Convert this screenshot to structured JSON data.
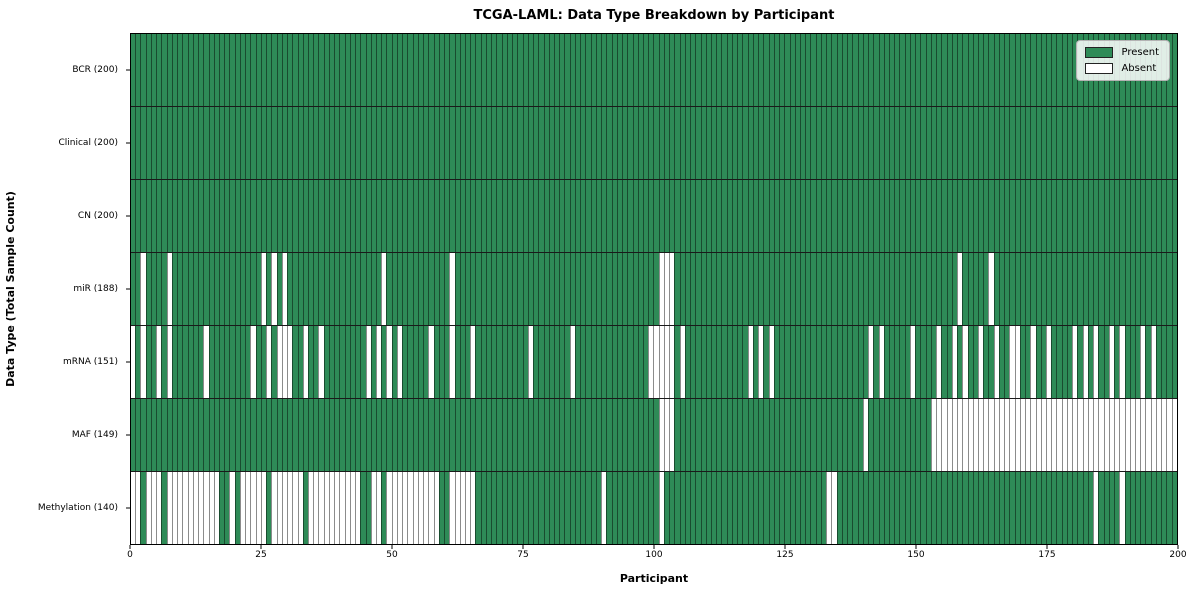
{
  "title": "TCGA-LAML: Data Type Breakdown by Participant",
  "xlabel": "Participant",
  "ylabel": "Data Type (Total Sample Count)",
  "legend": {
    "present_label": "Present",
    "absent_label": "Absent"
  },
  "colors": {
    "present": "#2E8B57",
    "absent": "#FFFFFF",
    "cell_edge": "rgba(0,0,0,0.45)",
    "row_divider": "#1a1a1a",
    "legend_border": "#b3b3b3"
  },
  "chart_data": {
    "type": "heatmap",
    "title": "TCGA-LAML: Data Type Breakdown by Participant",
    "xlabel": "Participant",
    "ylabel": "Data Type (Total Sample Count)",
    "n_participants": 200,
    "x_ticks": [
      0,
      25,
      50,
      75,
      100,
      125,
      150,
      175,
      200
    ],
    "legend_entries": [
      "Present",
      "Absent"
    ],
    "legend_position": "upper right",
    "rows": [
      {
        "label": "BCR (200)",
        "data_type": "BCR",
        "present_count": 200,
        "absent_participants": []
      },
      {
        "label": "Clinical (200)",
        "data_type": "Clinical",
        "present_count": 200,
        "absent_participants": []
      },
      {
        "label": "CN (200)",
        "data_type": "CN",
        "present_count": 200,
        "absent_participants": []
      },
      {
        "label": "miR (188)",
        "data_type": "miR",
        "present_count": 188,
        "absent_participants": [
          2,
          7,
          25,
          27,
          29,
          48,
          61,
          101,
          102,
          103,
          158,
          164
        ]
      },
      {
        "label": "mRNA (151)",
        "data_type": "mRNA",
        "present_count": 151,
        "absent_participants": [
          0,
          2,
          5,
          7,
          14,
          23,
          26,
          28,
          29,
          30,
          33,
          36,
          45,
          47,
          49,
          51,
          57,
          61,
          65,
          76,
          84,
          99,
          100,
          101,
          102,
          103,
          105,
          118,
          120,
          122,
          141,
          143,
          149,
          154,
          157,
          159,
          162,
          165,
          168,
          169,
          172,
          175,
          180,
          182,
          184,
          187,
          189,
          193,
          195
        ]
      },
      {
        "label": "MAF (149)",
        "data_type": "MAF",
        "present_count": 149,
        "absent_participants": [
          101,
          102,
          103,
          140,
          153,
          154,
          155,
          156,
          157,
          158,
          159,
          160,
          161,
          162,
          163,
          164,
          165,
          166,
          167,
          168,
          169,
          170,
          171,
          172,
          173,
          174,
          175,
          176,
          177,
          178,
          179,
          180,
          181,
          182,
          183,
          184,
          185,
          186,
          187,
          188,
          189,
          190,
          191,
          192,
          193,
          194,
          195,
          196,
          197,
          198,
          199
        ]
      },
      {
        "label": "Methylation (140)",
        "data_type": "Methylation",
        "present_count": 140,
        "absent_participants": [
          0,
          1,
          3,
          4,
          5,
          7,
          8,
          9,
          10,
          11,
          12,
          13,
          14,
          15,
          16,
          19,
          21,
          22,
          23,
          24,
          25,
          27,
          28,
          29,
          30,
          31,
          32,
          34,
          35,
          36,
          37,
          38,
          39,
          40,
          41,
          42,
          43,
          46,
          47,
          49,
          50,
          51,
          52,
          53,
          54,
          55,
          56,
          57,
          58,
          61,
          62,
          63,
          64,
          65,
          90,
          101,
          133,
          134,
          184,
          189
        ]
      }
    ]
  }
}
